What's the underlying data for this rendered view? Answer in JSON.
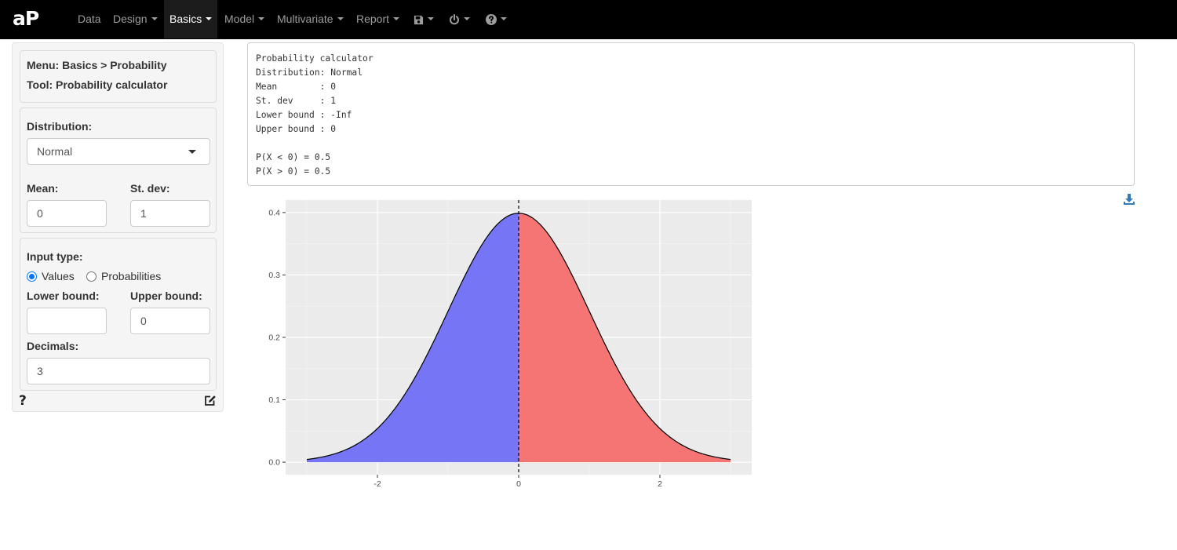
{
  "app": {
    "logo": "aP"
  },
  "nav": {
    "items": [
      {
        "label": "Data"
      },
      {
        "label": "Design"
      },
      {
        "label": "Basics"
      },
      {
        "label": "Model"
      },
      {
        "label": "Multivariate"
      },
      {
        "label": "Report"
      }
    ],
    "icons": [
      "save-icon",
      "power-icon",
      "help-circle-icon"
    ]
  },
  "sidebar": {
    "menu_label": "Menu: Basics > Probability",
    "tool_label": "Tool: Probability calculator",
    "distribution_label": "Distribution:",
    "distribution_value": "Normal",
    "mean_label": "Mean:",
    "mean_value": "0",
    "sd_label": "St. dev:",
    "sd_value": "1",
    "input_type_label": "Input type:",
    "input_type_options": [
      "Values",
      "Probabilities"
    ],
    "input_type_selected": "Values",
    "lower_bound_label": "Lower bound:",
    "lower_bound_value": "",
    "upper_bound_label": "Upper bound:",
    "upper_bound_value": "0",
    "decimals_label": "Decimals:",
    "decimals_value": "3",
    "help_label": "?"
  },
  "output": {
    "lines": [
      "Probability calculator",
      "Distribution: Normal",
      "Mean        : 0",
      "St. dev     : 1",
      "Lower bound : -Inf",
      "Upper bound : 0",
      "",
      "P(X < 0) = 0.5",
      "P(X > 0) = 0.5"
    ]
  },
  "colors": {
    "lower_fill": "#7575f6",
    "upper_fill": "#f57575",
    "panel_bg": "#ebebeb",
    "accent": "#337ab7"
  },
  "chart_data": {
    "type": "area",
    "title": "",
    "xlabel": "",
    "ylabel": "",
    "distribution": "normal",
    "mean": 0,
    "sd": 1,
    "xlim": [
      -3,
      3
    ],
    "ylim": [
      0,
      0.4
    ],
    "cutoff": 0,
    "x_ticks": [
      "-2",
      "0",
      "2"
    ],
    "y_ticks": [
      "0.0",
      "0.1",
      "0.2",
      "0.3",
      "0.4"
    ],
    "x_tick_values": [
      -2,
      0,
      2
    ],
    "y_tick_values": [
      0,
      0.1,
      0.2,
      0.3,
      0.4
    ],
    "series": [
      {
        "region": "lower",
        "x_range": [
          -3,
          0
        ],
        "color": "#7575f6"
      },
      {
        "region": "upper",
        "x_range": [
          0,
          3
        ],
        "color": "#f57575"
      }
    ],
    "grid": true,
    "legend": "none"
  }
}
